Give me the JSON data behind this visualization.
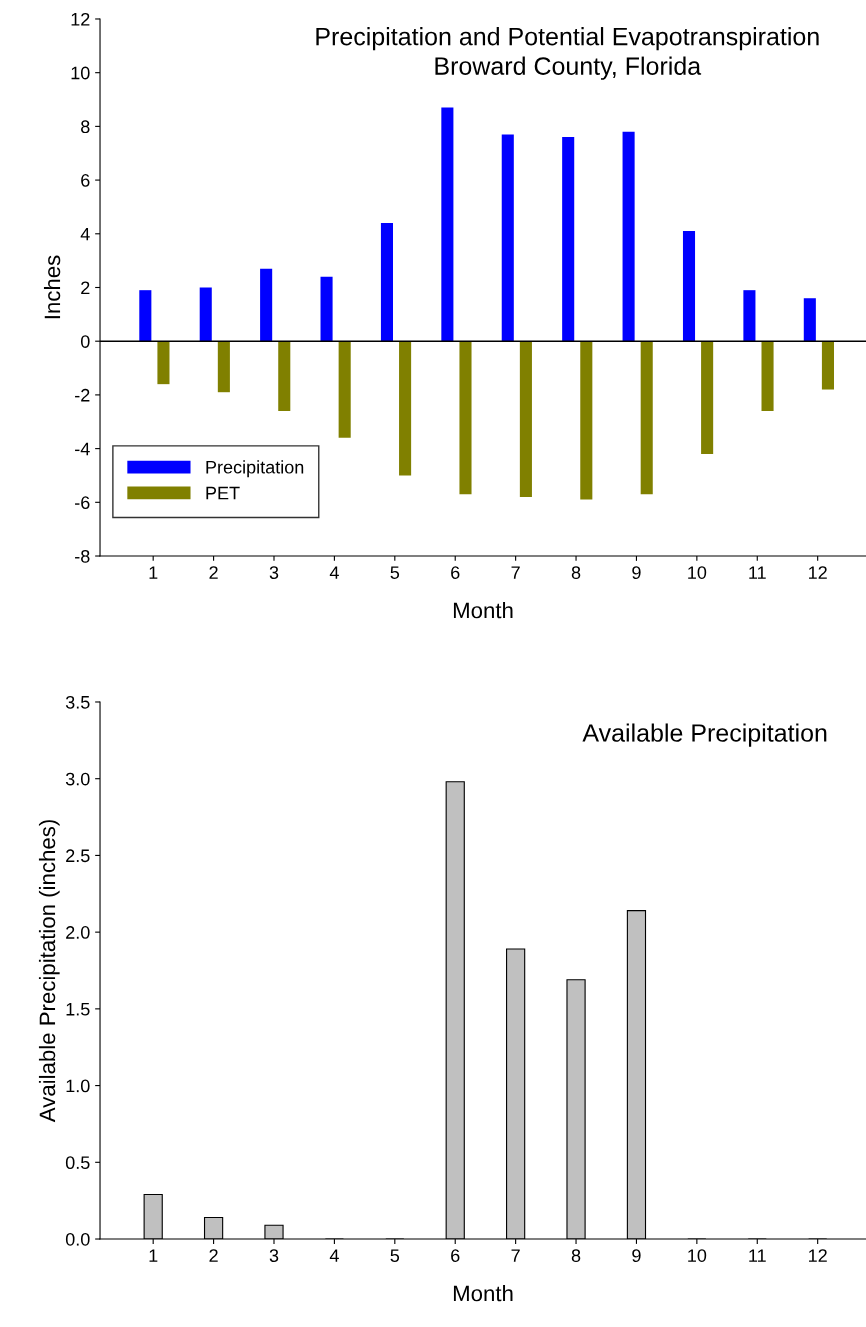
{
  "chart_data": [
    {
      "type": "bar",
      "title": "Precipitation and Potential Evapotranspiration",
      "subtitle": "Broward County, Florida",
      "xlabel": "Month",
      "ylabel": "Inches",
      "categories": [
        "1",
        "2",
        "3",
        "4",
        "5",
        "6",
        "7",
        "8",
        "9",
        "10",
        "11",
        "12"
      ],
      "series": [
        {
          "name": "Precipitation",
          "color": "#0000ff",
          "values": [
            1.9,
            2.0,
            2.7,
            2.4,
            4.4,
            8.7,
            7.7,
            7.6,
            7.8,
            4.1,
            1.9,
            1.6
          ]
        },
        {
          "name": "PET",
          "color": "#808000",
          "values": [
            -1.6,
            -1.9,
            -2.6,
            -3.6,
            -5.0,
            -5.7,
            -5.8,
            -5.9,
            -5.7,
            -4.2,
            -2.6,
            -1.8
          ]
        }
      ],
      "ylim": [
        -8,
        12
      ],
      "yticks": [
        -8,
        -6,
        -4,
        -2,
        0,
        2,
        4,
        6,
        8,
        10,
        12
      ],
      "ref_lines": [
        {
          "axis": "y",
          "value": 0,
          "color": "#000000"
        }
      ],
      "legend": "bottom left",
      "grid": false
    },
    {
      "type": "bar",
      "title": "Available Precipitation",
      "xlabel": "Month",
      "ylabel": "Available Precipitation (inches)",
      "categories": [
        "1",
        "2",
        "3",
        "4",
        "5",
        "6",
        "7",
        "8",
        "9",
        "10",
        "11",
        "12"
      ],
      "values": [
        0.29,
        0.14,
        0.09,
        0,
        0,
        2.98,
        1.89,
        1.69,
        2.14,
        0,
        0,
        0
      ],
      "color": "#c0c0c0",
      "ylim": [
        0,
        3.5
      ],
      "yticks": [
        {
          "value": 0,
          "label": "0.0"
        },
        {
          "value": 0.5,
          "label": "0.5"
        },
        {
          "value": 1,
          "label": "1.0"
        },
        {
          "value": 1.5,
          "label": "1.5"
        },
        {
          "value": 2,
          "label": "2.0"
        },
        {
          "value": 2.5,
          "label": "2.5"
        },
        {
          "value": 3,
          "label": "3.0"
        },
        {
          "value": 3.5,
          "label": "3.5"
        }
      ],
      "legend": false,
      "grid": false
    }
  ]
}
